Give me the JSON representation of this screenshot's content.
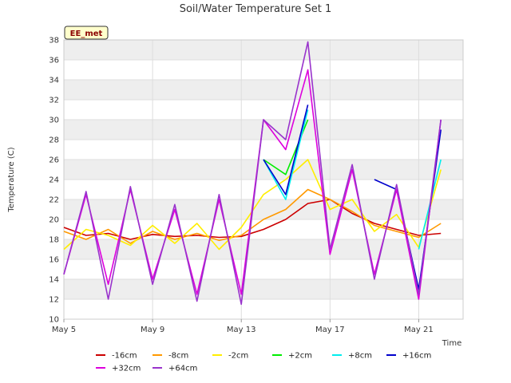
{
  "chart_data": {
    "type": "line",
    "title": "Soil/Water Temperature Set 1",
    "station_label": "EE_met",
    "xlabel": "Time",
    "ylabel": "Temperature (C)",
    "ylim": [
      10,
      38
    ],
    "yticks": [
      10,
      12,
      14,
      16,
      18,
      20,
      22,
      24,
      26,
      28,
      30,
      32,
      34,
      36,
      38
    ],
    "xlim": [
      "2024-05-05",
      "2024-05-23"
    ],
    "xticks": [
      {
        "date": "2024-05-05",
        "label": "May 5"
      },
      {
        "date": "2024-05-09",
        "label": "May 9"
      },
      {
        "date": "2024-05-13",
        "label": "May 13"
      },
      {
        "date": "2024-05-17",
        "label": "May 17"
      },
      {
        "date": "2024-05-21",
        "label": "May 21"
      }
    ],
    "grid": "horizontal-bands",
    "x_dates": [
      "2024-05-05",
      "2024-05-06",
      "2024-05-07",
      "2024-05-08",
      "2024-05-09",
      "2024-05-10",
      "2024-05-11",
      "2024-05-12",
      "2024-05-13",
      "2024-05-14",
      "2024-05-15",
      "2024-05-16",
      "2024-05-17",
      "2024-05-18",
      "2024-05-19",
      "2024-05-20",
      "2024-05-21",
      "2024-05-22"
    ],
    "series": [
      {
        "name": "-16cm",
        "color": "#cc0000",
        "values": [
          19.2,
          18.4,
          18.6,
          18.0,
          18.5,
          18.3,
          18.4,
          18.2,
          18.3,
          19.0,
          20.0,
          21.6,
          22.0,
          20.6,
          19.6,
          19.0,
          18.4,
          18.6
        ]
      },
      {
        "name": "-8cm",
        "color": "#ff9900",
        "values": [
          18.8,
          18.0,
          19.0,
          17.6,
          18.8,
          18.0,
          18.6,
          17.9,
          18.4,
          20.0,
          21.0,
          23.0,
          22.0,
          20.8,
          19.4,
          18.8,
          18.2,
          19.6
        ]
      },
      {
        "name": "-2cm",
        "color": "#ffee00",
        "values": [
          17.0,
          19.0,
          18.4,
          17.4,
          19.4,
          17.6,
          19.6,
          17.0,
          19.2,
          22.5,
          24.0,
          26.0,
          21.0,
          22.0,
          18.8,
          20.5,
          17.2,
          25.0
        ]
      },
      {
        "name": "+2cm",
        "color": "#00ee00",
        "values": [
          null,
          null,
          null,
          null,
          null,
          null,
          null,
          null,
          null,
          26.0,
          24.5,
          30.0,
          null,
          null,
          null,
          null,
          null,
          null
        ]
      },
      {
        "name": "+8cm",
        "color": "#00eeee",
        "values": [
          null,
          null,
          null,
          null,
          null,
          null,
          null,
          null,
          null,
          26.0,
          22.0,
          31.0,
          null,
          null,
          null,
          null,
          17.0,
          26.0
        ]
      },
      {
        "name": "+16cm",
        "color": "#0000cc",
        "values": [
          null,
          null,
          null,
          null,
          null,
          null,
          null,
          null,
          null,
          26.0,
          22.5,
          31.5,
          null,
          null,
          24.0,
          23.0,
          13.0,
          29.0
        ]
      },
      {
        "name": "+32cm",
        "color": "#dd00dd",
        "values": [
          14.5,
          22.5,
          13.5,
          23.0,
          14.0,
          21.0,
          12.5,
          22.0,
          12.5,
          30.0,
          27.0,
          35.0,
          16.5,
          25.0,
          14.5,
          23.0,
          12.0,
          30.0
        ]
      },
      {
        "name": "+64cm",
        "color": "#9933cc",
        "values": [
          14.5,
          22.8,
          12.0,
          23.3,
          13.5,
          21.5,
          11.8,
          22.5,
          11.5,
          30.0,
          28.0,
          37.8,
          17.0,
          25.5,
          14.0,
          23.5,
          12.5,
          30.0
        ]
      }
    ]
  }
}
